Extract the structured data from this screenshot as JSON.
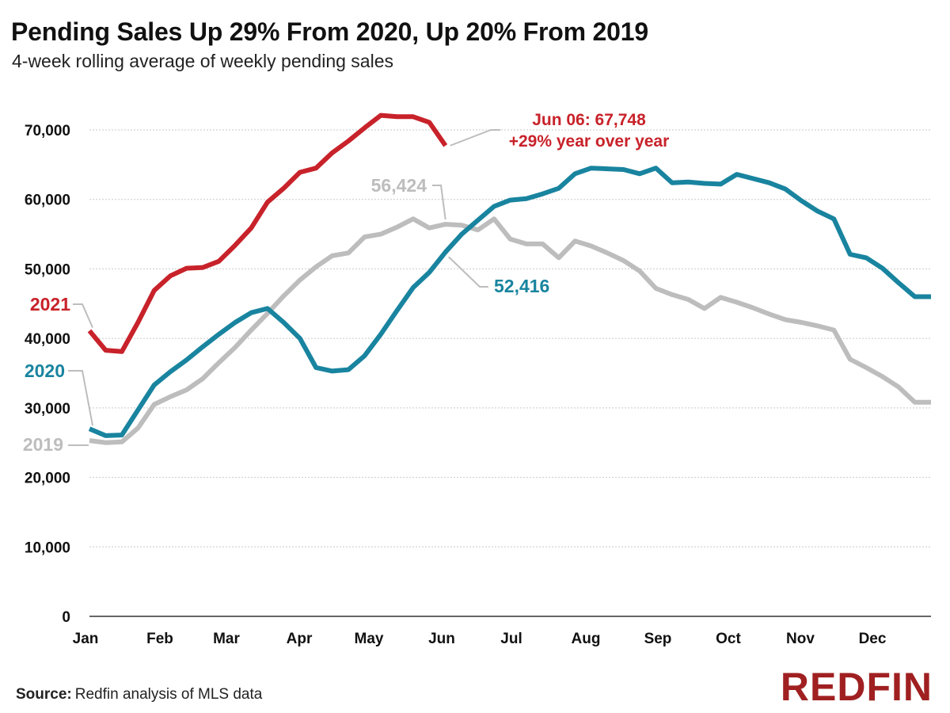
{
  "title": "Pending Sales Up 29% From 2020, Up 20% From 2019",
  "subtitle": "4-week rolling average of weekly pending sales",
  "source_label": "Source:",
  "source_text": "Redfin analysis of MLS data",
  "logo_text": "REDFIN",
  "colors": {
    "2021": "#c8222a",
    "2020": "#19849f",
    "2019": "#bdbdbd",
    "grid": "#c9c9c9"
  },
  "chart_data": {
    "type": "line",
    "title": "Pending Sales Up 29% From 2020, Up 20% From 2019",
    "subtitle": "4-week rolling average of weekly pending sales",
    "ylim": [
      0,
      75000
    ],
    "y_ticks": [
      "0",
      "10,000",
      "20,000",
      "30,000",
      "40,000",
      "50,000",
      "60,000",
      "70,000"
    ],
    "y_tick_values": [
      0,
      10000,
      20000,
      30000,
      40000,
      50000,
      60000,
      70000
    ],
    "x_ticks": [
      "Jan",
      "Feb",
      "Mar",
      "Apr",
      "May",
      "Jun",
      "Jul",
      "Aug",
      "Sep",
      "Oct",
      "Nov",
      "Dec"
    ],
    "x_unit": "week of year",
    "xlim": [
      1,
      53
    ],
    "grid": true,
    "series": [
      {
        "name": "2021",
        "color": "#c8222a",
        "x": [
          1,
          2,
          3,
          4,
          5,
          6,
          7,
          8,
          9,
          10,
          11,
          12,
          13,
          14,
          15,
          16,
          17,
          18,
          19,
          20,
          21,
          22,
          23
        ],
        "y": [
          41100,
          38300,
          38100,
          42300,
          46900,
          49000,
          50100,
          50200,
          51100,
          53400,
          55900,
          59600,
          61600,
          63900,
          64500,
          66700,
          68400,
          70300,
          72100,
          71900,
          71900,
          71100,
          67748
        ]
      },
      {
        "name": "2020",
        "color": "#19849f",
        "x": [
          1,
          2,
          3,
          4,
          5,
          6,
          7,
          8,
          9,
          10,
          11,
          12,
          13,
          14,
          15,
          16,
          17,
          18,
          19,
          20,
          21,
          22,
          23,
          24,
          25,
          26,
          27,
          28,
          29,
          30,
          31,
          32,
          33,
          34,
          35,
          36,
          37,
          38,
          39,
          40,
          41,
          42,
          43,
          44,
          45,
          46,
          47,
          48,
          49,
          50,
          51,
          52,
          53
        ],
        "y": [
          27000,
          26000,
          26100,
          29700,
          33300,
          35200,
          36900,
          38800,
          40600,
          42300,
          43700,
          44300,
          42300,
          40000,
          35800,
          35300,
          35500,
          37500,
          40600,
          44000,
          47300,
          49500,
          52416,
          55000,
          57000,
          59000,
          59900,
          60100,
          60800,
          61600,
          63700,
          64500,
          64400,
          64300,
          63700,
          64500,
          62400,
          62500,
          62300,
          62200,
          63600,
          63000,
          62400,
          61500,
          59800,
          58300,
          57200,
          52100,
          51600,
          50100,
          48000,
          46000,
          46000
        ]
      },
      {
        "name": "2019",
        "color": "#bdbdbd",
        "x": [
          1,
          2,
          3,
          4,
          5,
          6,
          7,
          8,
          9,
          10,
          11,
          12,
          13,
          14,
          15,
          16,
          17,
          18,
          19,
          20,
          21,
          22,
          23,
          24,
          25,
          26,
          27,
          28,
          29,
          30,
          31,
          32,
          33,
          34,
          35,
          36,
          37,
          38,
          39,
          40,
          41,
          42,
          43,
          44,
          45,
          46,
          47,
          48,
          49,
          50,
          51,
          52,
          53
        ],
        "y": [
          25300,
          25000,
          25100,
          27100,
          30500,
          31600,
          32600,
          34200,
          36500,
          38700,
          41200,
          43600,
          46100,
          48400,
          50300,
          51900,
          52300,
          54600,
          55000,
          56000,
          57200,
          55900,
          56424,
          56300,
          55600,
          57200,
          54300,
          53600,
          53600,
          51600,
          54000,
          53300,
          52300,
          51200,
          49700,
          47200,
          46300,
          45600,
          44300,
          45900,
          45200,
          44400,
          43500,
          42700,
          42300,
          41800,
          41200,
          37000,
          35800,
          34500,
          33000,
          30800,
          30800
        ]
      }
    ],
    "annotations": [
      {
        "series": "2021",
        "text_line1": "Jun 06: 67,748",
        "text_line2": "+29% year over year"
      },
      {
        "series": "2019",
        "text": "56,424"
      },
      {
        "series": "2020",
        "text": "52,416"
      }
    ],
    "series_labels": [
      "2021",
      "2020",
      "2019"
    ]
  }
}
